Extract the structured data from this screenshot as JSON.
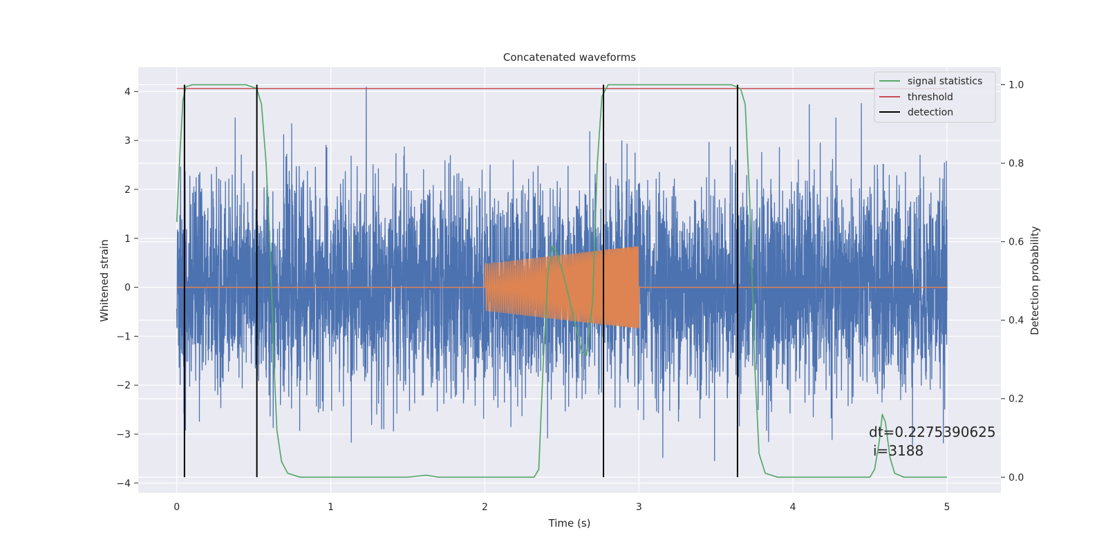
{
  "chart_data": {
    "type": "line",
    "title": "Concatenated waveforms",
    "xlabel": "Time (s)",
    "ylabel_left": "Whitened strain",
    "ylabel_right": "Detection probability",
    "xlim": [
      -0.25,
      5.35
    ],
    "ylim_left": [
      -4.2,
      4.5
    ],
    "ylim_right": [
      -0.04,
      1.045
    ],
    "x_ticks": [
      0,
      1,
      2,
      3,
      4,
      5
    ],
    "y_ticks_left": [
      -4,
      -3,
      -2,
      -1,
      0,
      1,
      2,
      3,
      4
    ],
    "y_ticks_right": [
      0.0,
      0.2,
      0.4,
      0.6,
      0.8,
      1.0
    ],
    "grid": true,
    "legend_position": "top-right",
    "series": [
      {
        "name": "",
        "axis": "left",
        "color": "#4c72b0",
        "kind": "noise",
        "x_range": [
          0,
          5
        ],
        "amplitude_std": 1.05,
        "peak_max": 4.1,
        "peak_min": -3.65
      },
      {
        "name": "",
        "axis": "left",
        "color": "#dd8452",
        "kind": "chirp",
        "x_range": [
          2.0,
          3.0
        ],
        "amplitude_start": 0.48,
        "amplitude_end": 0.85,
        "value_outside": 0
      },
      {
        "name": "signal statistics",
        "axis": "right",
        "color": "#55a868",
        "points": [
          [
            0.0,
            0.65
          ],
          [
            0.02,
            0.82
          ],
          [
            0.04,
            0.96
          ],
          [
            0.06,
            0.995
          ],
          [
            0.1,
            1.0
          ],
          [
            0.45,
            1.0
          ],
          [
            0.52,
            0.99
          ],
          [
            0.55,
            0.95
          ],
          [
            0.58,
            0.8
          ],
          [
            0.61,
            0.55
          ],
          [
            0.63,
            0.3
          ],
          [
            0.65,
            0.12
          ],
          [
            0.68,
            0.04
          ],
          [
            0.72,
            0.01
          ],
          [
            0.8,
            0.0
          ],
          [
            1.5,
            0.0
          ],
          [
            1.62,
            0.005
          ],
          [
            1.7,
            0.0
          ],
          [
            2.32,
            0.0
          ],
          [
            2.35,
            0.02
          ],
          [
            2.38,
            0.3
          ],
          [
            2.41,
            0.52
          ],
          [
            2.44,
            0.59
          ],
          [
            2.47,
            0.57
          ],
          [
            2.52,
            0.5
          ],
          [
            2.58,
            0.4
          ],
          [
            2.63,
            0.32
          ],
          [
            2.66,
            0.31
          ],
          [
            2.7,
            0.45
          ],
          [
            2.73,
            0.8
          ],
          [
            2.76,
            0.97
          ],
          [
            2.8,
            1.0
          ],
          [
            3.6,
            1.0
          ],
          [
            3.66,
            0.99
          ],
          [
            3.69,
            0.95
          ],
          [
            3.72,
            0.7
          ],
          [
            3.75,
            0.3
          ],
          [
            3.78,
            0.06
          ],
          [
            3.82,
            0.01
          ],
          [
            3.9,
            0.0
          ],
          [
            4.5,
            0.0
          ],
          [
            4.53,
            0.02
          ],
          [
            4.56,
            0.09
          ],
          [
            4.58,
            0.16
          ],
          [
            4.6,
            0.14
          ],
          [
            4.63,
            0.05
          ],
          [
            4.66,
            0.01
          ],
          [
            4.72,
            0.0
          ],
          [
            5.0,
            0.0
          ]
        ]
      },
      {
        "name": "threshold",
        "axis": "right",
        "color": "#c44e52",
        "value": 0.99
      },
      {
        "name": "detection",
        "axis": "right",
        "color": "#000000",
        "x_values": [
          0.05,
          0.52,
          2.77,
          3.64
        ],
        "y_range": [
          0.0,
          1.0
        ]
      }
    ],
    "annotations": [
      "dt=0.2275390625",
      "i=3188"
    ]
  }
}
